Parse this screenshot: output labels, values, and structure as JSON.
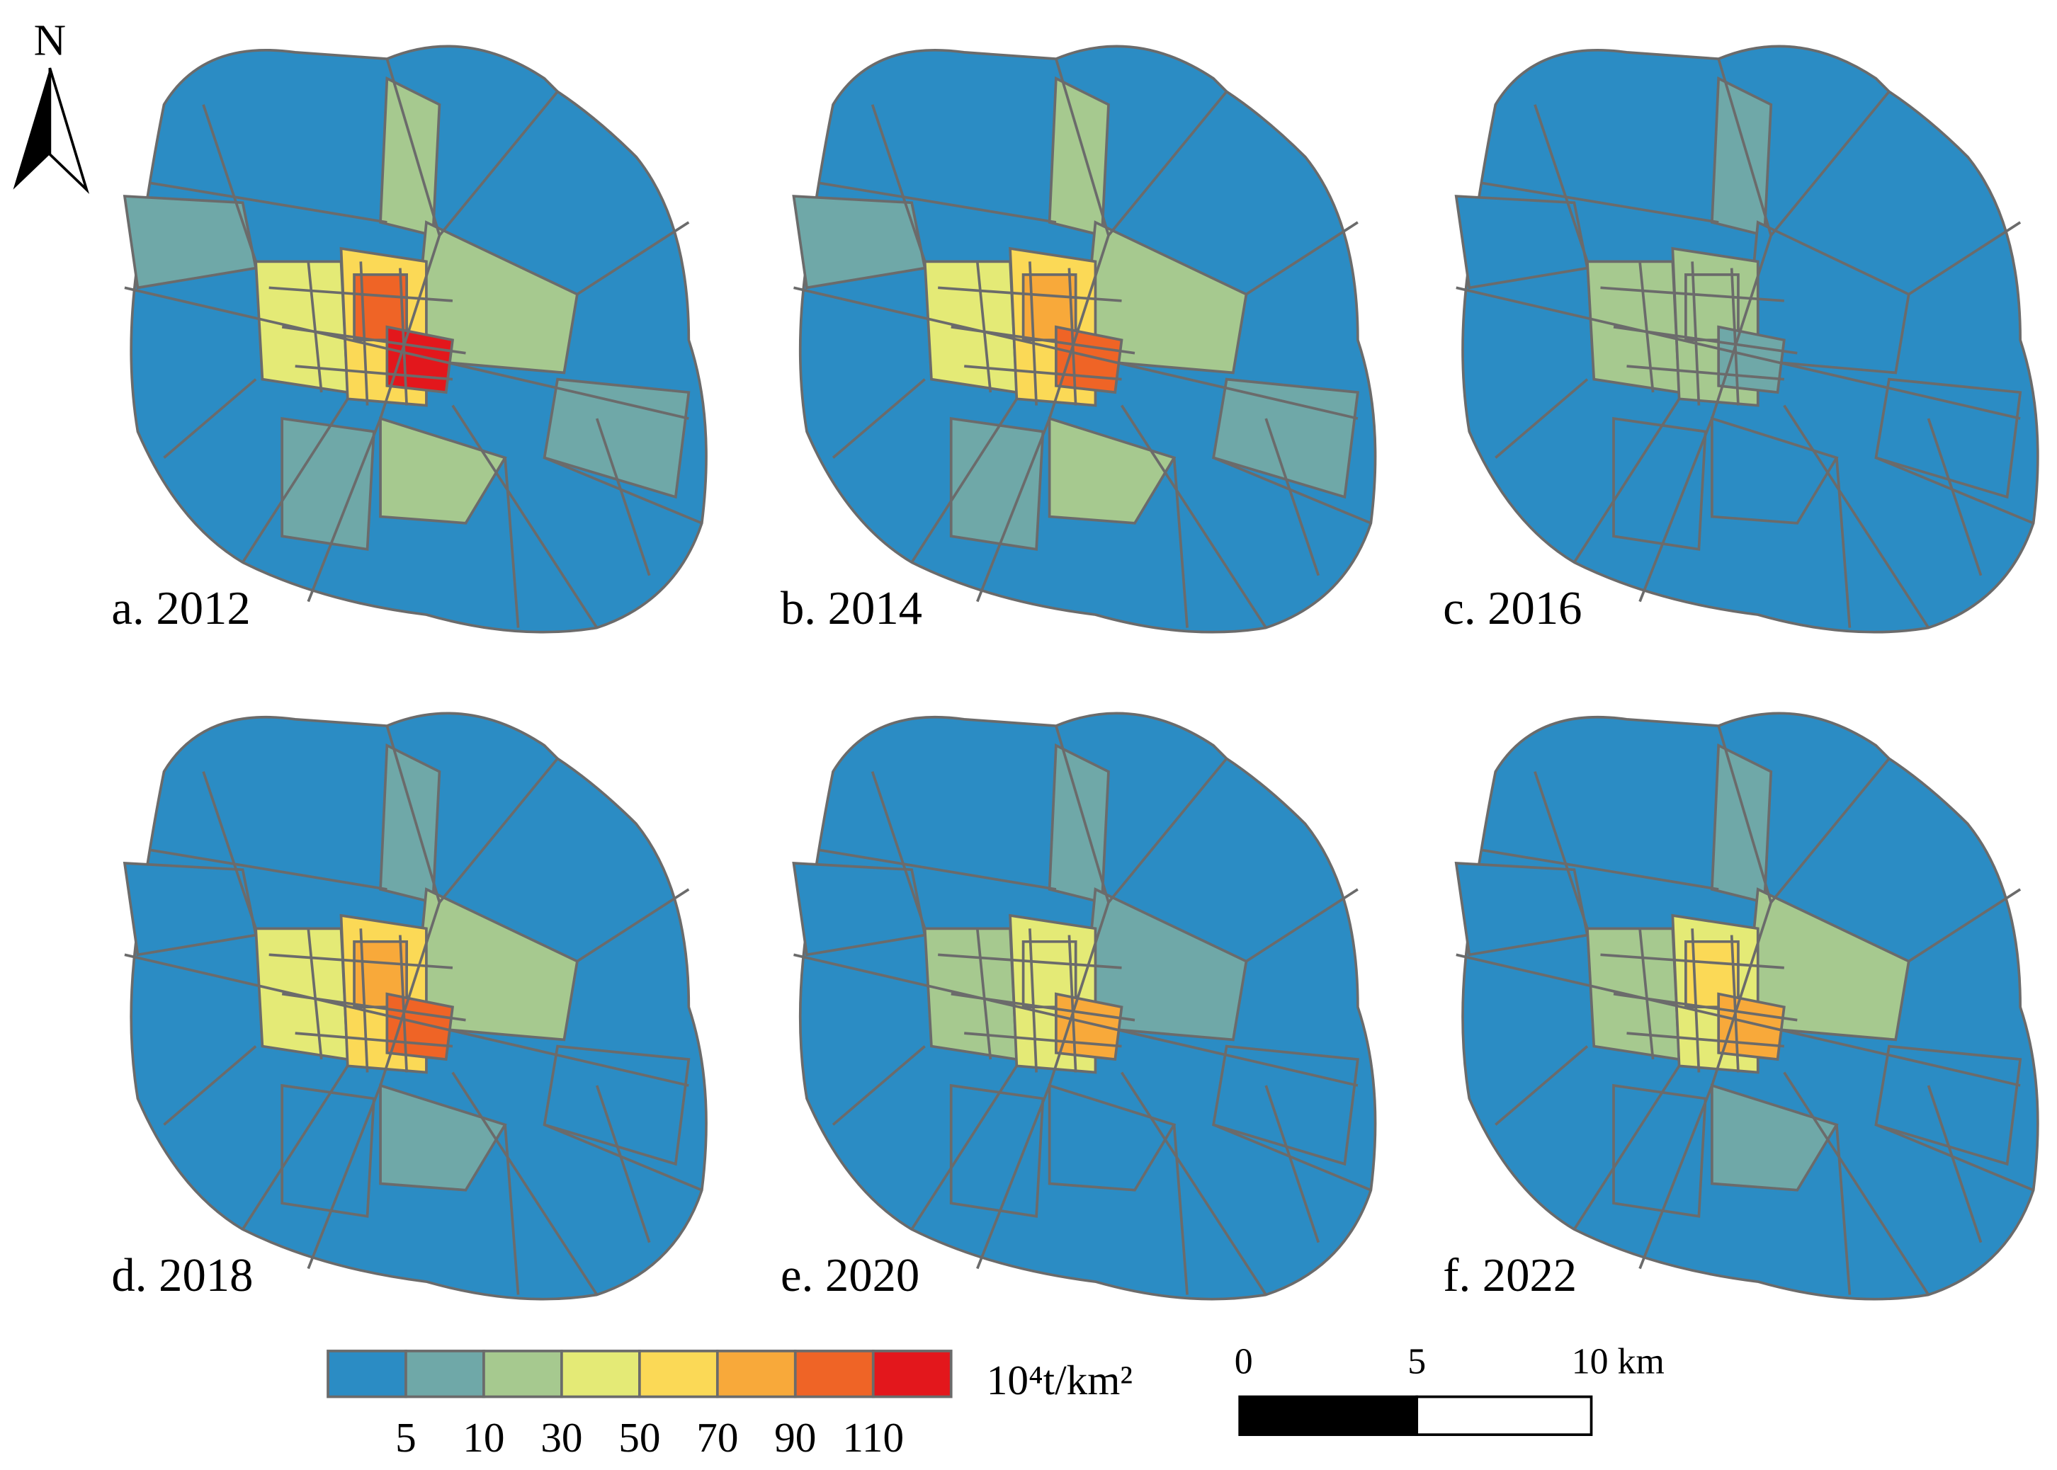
{
  "north": "N",
  "panels": [
    {
      "label": "a. 2012"
    },
    {
      "label": "b. 2014"
    },
    {
      "label": "c. 2016"
    },
    {
      "label": "d. 2018"
    },
    {
      "label": "e. 2020"
    },
    {
      "label": "f. 2022"
    }
  ],
  "legend": {
    "colors": [
      "#2b8cc4",
      "#6fa8a8",
      "#a6c98f",
      "#e4ea76",
      "#fbd956",
      "#f8a93a",
      "#ef6426",
      "#e3171c"
    ],
    "ticks": [
      5,
      10,
      30,
      50,
      70,
      90,
      110
    ],
    "unit": "10⁴t/km²"
  },
  "scale_bar": {
    "labels": [
      "0",
      "5",
      "10 km"
    ]
  }
}
